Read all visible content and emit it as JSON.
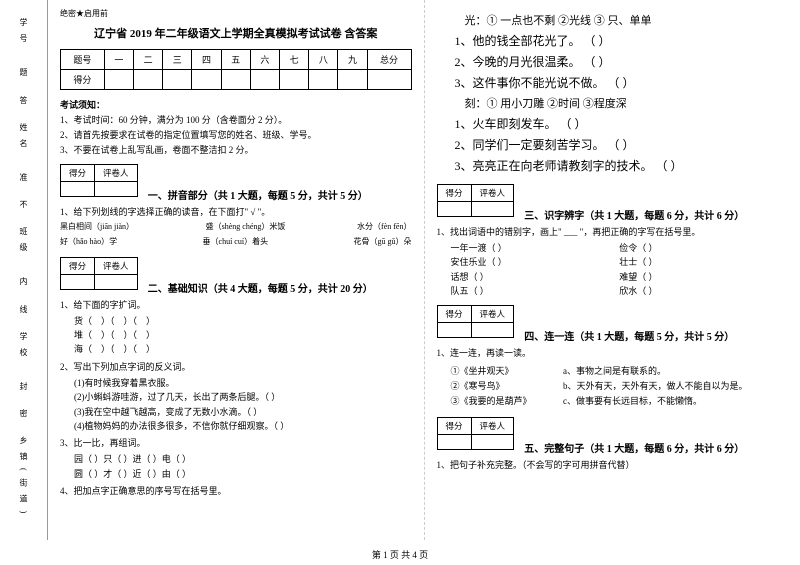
{
  "binding": {
    "labels": [
      "学号",
      "姓名",
      "班级",
      "学校",
      "乡镇(街道)"
    ],
    "marks": [
      "题",
      "答",
      "准",
      "不",
      "内",
      "线",
      "封",
      "密"
    ]
  },
  "header": {
    "secret": "绝密★启用前",
    "title": "辽宁省 2019 年二年级语文上学期全真模拟考试试卷 含答案"
  },
  "score_table": {
    "row1": [
      "题号",
      "一",
      "二",
      "三",
      "四",
      "五",
      "六",
      "七",
      "八",
      "九",
      "总分"
    ],
    "row2_label": "得分"
  },
  "notice": {
    "heading": "考试须知：",
    "items": [
      "1、考试时间：60 分钟，满分为 100 分（含卷面分 2 分）。",
      "2、请首先按要求在试卷的指定位置填写您的姓名、班级、学号。",
      "3、不要在试卷上乱写乱画，卷面不整洁扣 2 分。"
    ]
  },
  "scorebox": {
    "c1": "得分",
    "c2": "评卷人"
  },
  "sections": {
    "s1": "一、拼音部分（共 1 大题，每题 5 分，共计 5 分）",
    "s2": "二、基础知识（共 4 大题，每题 5 分，共计 20 分）",
    "s3": "三、识字辨字（共 1 大题，每题 6 分，共计 6 分）",
    "s4": "四、连一连（共 1 大题，每题 5 分，共计 5 分）",
    "s5": "五、完整句子（共 1 大题，每题 6 分，共计 6 分）"
  },
  "q1": {
    "stem": "1、给下列划线的字选择正确的读音，在下面打\" √ \"。",
    "l1a": "黑白相间（jiān  jiàn）",
    "l1b": "盛（shèng chéng）米饭",
    "l1c": "水分（fèn fēn）",
    "l2a": "好（hǎo hào）学",
    "l2b": "垂（chuí  cuí）着头",
    "l2c": "花骨（gū gǔ）朵"
  },
  "q2": {
    "s1": "1、给下面的字扩词。",
    "rows": [
      [
        "货（",
        "）（",
        "）（",
        "）"
      ],
      [
        "堆（",
        "）（",
        "）（",
        "）"
      ],
      [
        "海（",
        "）（",
        "）（",
        "）"
      ]
    ],
    "s2": "2、写出下列加点字词的反义词。",
    "lines": [
      "(1)有时候我穿着黑衣服。",
      "(2)小蝌蚪游哇游，过了几天，长出了两条后腿。（      ）",
      "(3)我在空中越飞越高，变成了无数小水滴。（      ）",
      "(4)植物妈妈的办法很多很多，不信你就仔细观察。（      ）"
    ],
    "s3": "3、比一比，再组词。",
    "pairs": [
      [
        "园（     ）只（     ）进（     ）电（     ）"
      ],
      [
        "圆（     ）才（     ）近（     ）由（     ）"
      ]
    ],
    "s4": "4、把加点字正确意思的序号写在括号里。"
  },
  "right_top": {
    "guang_def": "光：① 一点也不剩    ②光线    ③ 只、单单",
    "g1": "1、他的钱全部花光了。    （    ）",
    "g2": "2、今晚的月光很温柔。    （    ）",
    "g3": "3、这件事你不能光说不做。 （   ）",
    "ke_def": "刻：① 用小刀雕      ②时间    ③程度深",
    "k1": "1、火车即刻发车。                （    ）",
    "k2": "2、同学们一定要刻苦学习。        （    ）",
    "k3": "3、亮亮正在向老师请教刻字的技术。 （   ）"
  },
  "q3": {
    "stem": "1、找出词语中的错别字，画上\" ___ \"，再把正确的字写在括号里。",
    "rows": [
      [
        "一年一渡（    ）",
        "俭令（    ）"
      ],
      [
        "安住乐业（    ）",
        "壮士（    ）"
      ],
      [
        "话想（    ）",
        "难望（    ）"
      ],
      [
        "队五（    ）",
        "欣水（    ）"
      ]
    ]
  },
  "q4": {
    "stem": "1、连一连，再读一读。",
    "left": [
      "①《坐井观天》",
      "②《寒号鸟》",
      "③《我要的是葫芦》"
    ],
    "right": [
      "a、事物之间是有联系的。",
      "b、天外有天，天外有天，做人不能自以为是。",
      "c、做事要有长远目标，不能懒惰。"
    ]
  },
  "q5": {
    "stem": "1、把句子补充完整。（不会写的字可用拼音代替）"
  },
  "footer": "第 1 页 共 4 页"
}
